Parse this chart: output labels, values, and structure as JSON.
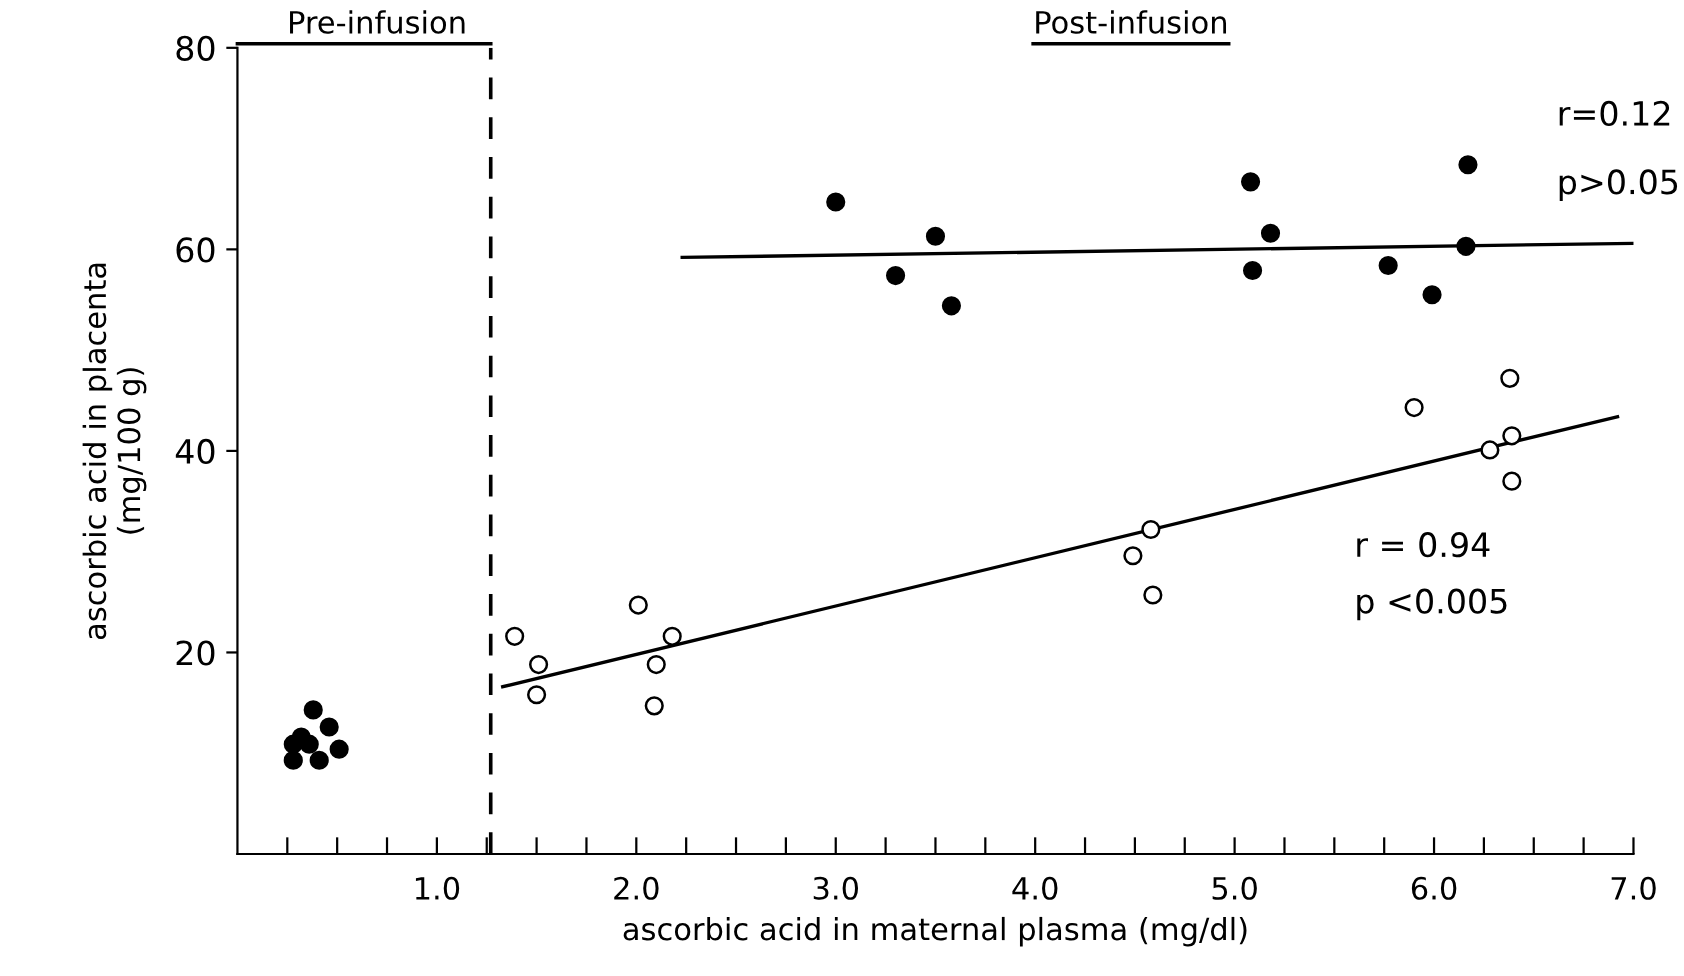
{
  "chart_data": {
    "type": "scatter",
    "xlabel": "ascorbic acid in maternal plasma (mg/dl)",
    "ylabel": "ascorbic acid in placenta\n(mg/100 g)",
    "xlim": [
      0,
      7.0
    ],
    "ylim": [
      0,
      80
    ],
    "xticks": [
      {
        "value": 0.25,
        "label": null
      },
      {
        "value": 0.5,
        "label": null
      },
      {
        "value": 0.75,
        "label": null
      },
      {
        "value": 1.0,
        "label": "1.0"
      },
      {
        "value": 1.25,
        "label": null
      },
      {
        "value": 1.5,
        "label": null
      },
      {
        "value": 1.75,
        "label": null
      },
      {
        "value": 2.0,
        "label": "2.0"
      },
      {
        "value": 2.25,
        "label": null
      },
      {
        "value": 2.5,
        "label": null
      },
      {
        "value": 2.75,
        "label": null
      },
      {
        "value": 3.0,
        "label": "3.0"
      },
      {
        "value": 3.25,
        "label": null
      },
      {
        "value": 3.5,
        "label": null
      },
      {
        "value": 3.75,
        "label": null
      },
      {
        "value": 4.0,
        "label": "4.0"
      },
      {
        "value": 4.25,
        "label": null
      },
      {
        "value": 4.5,
        "label": null
      },
      {
        "value": 4.75,
        "label": null
      },
      {
        "value": 5.0,
        "label": "5.0"
      },
      {
        "value": 5.25,
        "label": null
      },
      {
        "value": 5.5,
        "label": null
      },
      {
        "value": 5.75,
        "label": null
      },
      {
        "value": 6.0,
        "label": "6.0"
      },
      {
        "value": 6.25,
        "label": null
      },
      {
        "value": 6.5,
        "label": null
      },
      {
        "value": 6.75,
        "label": null
      },
      {
        "value": 7.0,
        "label": "7.0"
      }
    ],
    "yticks": [
      20,
      40,
      60,
      80
    ],
    "marker": "circle",
    "grid": false,
    "legend": false,
    "series": [
      {
        "color": "#000000",
        "x": [
          0.38,
          0.46,
          0.32,
          0.36,
          0.51,
          0.28,
          0.41,
          0.28
        ],
        "values": [
          14.3,
          12.6,
          11.6,
          10.9,
          10.4,
          9.3,
          9.3,
          10.9
        ]
      },
      {
        "color": "#000000",
        "x": [
          3.0,
          3.3,
          3.5,
          3.58,
          5.08,
          5.18,
          5.09,
          5.77,
          5.99,
          6.17,
          6.16
        ],
        "values": [
          64.7,
          57.4,
          61.3,
          54.4,
          66.7,
          61.6,
          57.9,
          58.4,
          55.5,
          68.4,
          60.3
        ]
      },
      {
        "color": "#ffffff",
        "x": [
          1.39,
          1.51,
          1.5,
          2.01,
          2.1,
          2.09,
          2.18,
          4.49,
          4.58,
          4.59,
          5.9,
          6.28,
          6.38,
          6.39,
          6.39
        ],
        "values": [
          21.6,
          18.8,
          15.8,
          24.7,
          18.8,
          14.7,
          21.6,
          29.6,
          32.2,
          25.7,
          44.3,
          40.1,
          47.2,
          41.5,
          37.0
        ]
      },
      {
        "type": "line",
        "color": "#000000",
        "marker": "none",
        "x": [
          2.23,
          7.0
        ],
        "values": [
          59.2,
          60.6
        ]
      },
      {
        "type": "line",
        "color": "#000000",
        "marker": "none",
        "x": [
          1.33,
          6.92
        ],
        "values": [
          16.6,
          43.4
        ]
      }
    ],
    "ref_lines": [
      {
        "axis": "x",
        "value": 1.27,
        "line_style": "dashed",
        "color": "#000000"
      }
    ],
    "annotations": [
      "Pre-infusion",
      "Post-infusion",
      "r=0.12",
      "p>0.05",
      "r = 0.94",
      "p <0.005"
    ]
  }
}
